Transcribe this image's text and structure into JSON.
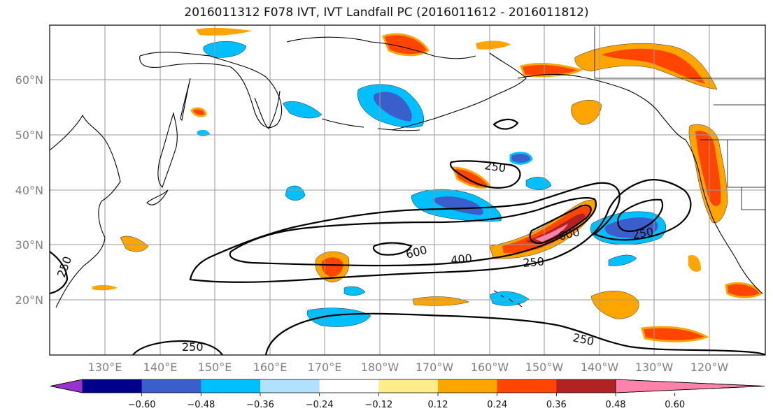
{
  "title": "2016011312 F078 IVT, IVT Landfall PC (2016011612 - 2016011812)",
  "lat_labels": [
    "60°N",
    "50°N",
    "40°N",
    "30°N",
    "20°N"
  ],
  "lon_labels": [
    "130°E",
    "140°E",
    "150°E",
    "160°E",
    "170°E",
    "180°W",
    "170°W",
    "160°W",
    "150°W",
    "140°W",
    "130°W",
    "120°W"
  ],
  "ivt_contour_labels": [
    "250",
    "250",
    "250",
    "250",
    "250",
    "400",
    "600",
    "600",
    "250"
  ],
  "colorbar": {
    "ticks": [
      "−0.60",
      "−0.48",
      "−0.36",
      "−0.24",
      "−0.12",
      "0.12",
      "0.24",
      "0.36",
      "0.48",
      "0.60"
    ],
    "colors": [
      "#9932CC",
      "#00008B",
      "#3A5FCD",
      "#00BFFF",
      "#B0E2FF",
      "#FFFFFF",
      "#FFEC8B",
      "#FFA500",
      "#FF4500",
      "#B22222",
      "#FF82AB"
    ]
  }
}
